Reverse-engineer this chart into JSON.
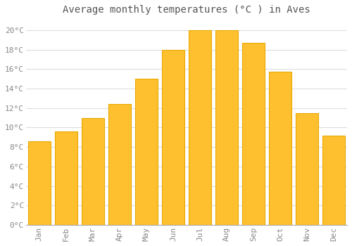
{
  "title": "Average monthly temperatures (°C ) in Aves",
  "months": [
    "Jan",
    "Feb",
    "Mar",
    "Apr",
    "May",
    "Jun",
    "Jul",
    "Aug",
    "Sep",
    "Oct",
    "Nov",
    "Dec"
  ],
  "values": [
    8.6,
    9.6,
    11.0,
    12.4,
    15.0,
    18.0,
    20.0,
    20.0,
    18.7,
    15.7,
    11.5,
    9.2
  ],
  "bar_color": "#FFC030",
  "bar_edge_color": "#E8A800",
  "background_color": "#FFFFFF",
  "grid_color": "#DDDDDD",
  "ylim": [
    0,
    21
  ],
  "yticks": [
    0,
    2,
    4,
    6,
    8,
    10,
    12,
    14,
    16,
    18,
    20
  ],
  "title_fontsize": 10,
  "tick_fontsize": 8,
  "tick_font_color": "#888888",
  "title_font_color": "#555555",
  "bar_width": 0.85
}
